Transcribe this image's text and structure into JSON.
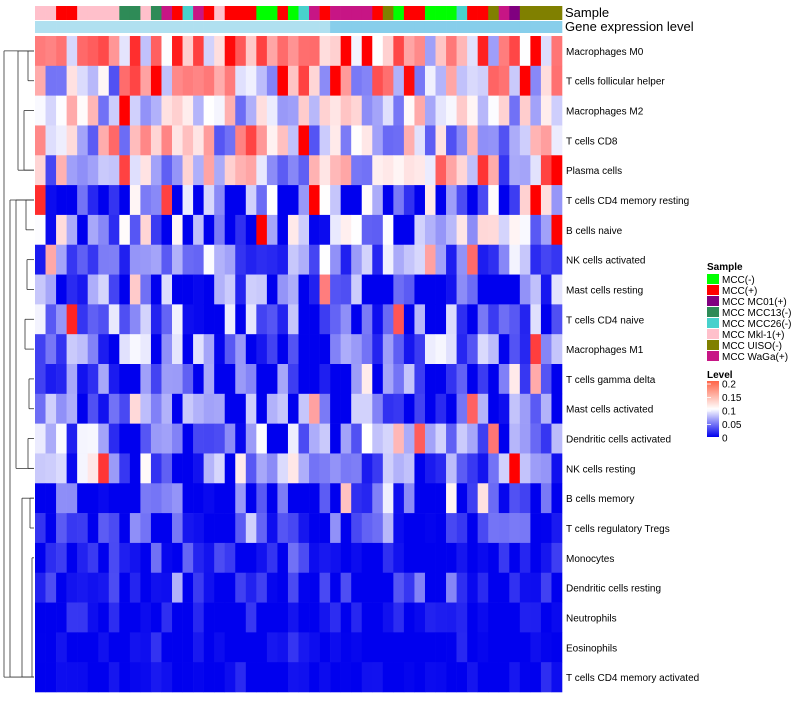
{
  "chart_data": {
    "type": "heatmap",
    "annotation_labels": [
      "Sample",
      "Gene expression level"
    ],
    "rows": [
      "Macrophages M0",
      "T cells follicular helper",
      "Macrophages M2",
      "T cells CD8",
      "Plasma cells",
      "T cells CD4 memory resting",
      "B cells naive",
      "NK cells activated",
      "Mast cells resting",
      "T cells CD4 naive",
      "Macrophages M1",
      "T cells gamma delta",
      "Mast cells activated",
      "Dendritic cells activated",
      "NK cells resting",
      "B cells memory",
      "T cells regulatory  Tregs",
      "Monocytes",
      "Dendritic cells resting",
      "Neutrophils",
      "Eosinophils",
      "T cells CD4 memory activated"
    ],
    "n_cols": 50,
    "col_samples": [
      "MCC Mkl-1(+)",
      "MCC Mkl-1(+)",
      "MCC(+)",
      "MCC(+)",
      "MCC Mkl-1(+)",
      "MCC Mkl-1(+)",
      "MCC Mkl-1(+)",
      "MCC Mkl-1(+)",
      "MCC MCC13(-)",
      "MCC MCC13(-)",
      "MCC Mkl-1(+)",
      "MCC MCC13(-)",
      "MCC WaGa(+)",
      "MCC(+)",
      "MCC MCC26(-)",
      "MCC WaGa(+)",
      "MCC(+)",
      "MCC Mkl-1(+)",
      "MCC(+)",
      "MCC(+)",
      "MCC(+)",
      "MCC(-)",
      "MCC(-)",
      "MCC(+)",
      "MCC(-)",
      "MCC MCC26(-)",
      "MCC WaGa(+)",
      "MCC(+)",
      "MCC WaGa(+)",
      "MCC WaGa(+)",
      "MCC WaGa(+)",
      "MCC WaGa(+)",
      "MCC(+)",
      "MCC UISO(-)",
      "MCC(-)",
      "MCC(+)",
      "MCC(+)",
      "MCC(-)",
      "MCC(-)",
      "MCC(-)",
      "MCC MCC26(-)",
      "MCC(+)",
      "MCC(+)",
      "MCC UISO(-)",
      "MCC WaGa(+)",
      "MCC MC01(+)",
      "MCC UISO(-)",
      "MCC UISO(-)",
      "MCC UISO(-)",
      "MCC UISO(-)"
    ],
    "row_profiles": [
      {
        "base": 0.13,
        "spread": 0.07
      },
      {
        "base": 0.12,
        "spread": 0.09
      },
      {
        "base": 0.09,
        "spread": 0.05
      },
      {
        "base": 0.09,
        "spread": 0.06
      },
      {
        "base": 0.08,
        "spread": 0.06
      },
      {
        "base": 0.03,
        "spread": 0.09
      },
      {
        "base": 0.03,
        "spread": 0.09
      },
      {
        "base": 0.06,
        "spread": 0.05
      },
      {
        "base": 0.02,
        "spread": 0.07
      },
      {
        "base": 0.02,
        "spread": 0.08
      },
      {
        "base": 0.04,
        "spread": 0.06
      },
      {
        "base": 0.02,
        "spread": 0.05
      },
      {
        "base": 0.03,
        "spread": 0.06
      },
      {
        "base": 0.04,
        "spread": 0.06
      },
      {
        "base": 0.04,
        "spread": 0.07
      },
      {
        "base": 0.01,
        "spread": 0.05
      },
      {
        "base": 0.01,
        "spread": 0.04
      },
      {
        "base": 0.005,
        "spread": 0.02
      },
      {
        "base": 0.005,
        "spread": 0.03
      },
      {
        "base": 0.002,
        "spread": 0.02
      },
      {
        "base": 0.0,
        "spread": 0.01
      },
      {
        "base": 0.0,
        "spread": 0.01
      }
    ],
    "color_scale": {
      "min": 0,
      "max": 0.2,
      "colors": [
        "#0000ee",
        "#ffffff",
        "#ff0000"
      ]
    },
    "legend": {
      "sample_title": "Sample",
      "sample_entries": [
        {
          "label": "MCC(-)",
          "color": "#00ff00"
        },
        {
          "label": "MCC(+)",
          "color": "#ff0000"
        },
        {
          "label": "MCC MC01(+)",
          "color": "#800080"
        },
        {
          "label": "MCC MCC13(-)",
          "color": "#2e8b57"
        },
        {
          "label": "MCC MCC26(-)",
          "color": "#48d1cc"
        },
        {
          "label": "MCC Mkl-1(+)",
          "color": "#ffc0cb"
        },
        {
          "label": "MCC UISO(-)",
          "color": "#808000"
        },
        {
          "label": "MCC WaGa(+)",
          "color": "#c71585"
        }
      ],
      "level_title": "Level",
      "level_ticks": [
        "0.2",
        "0.15",
        "0.1",
        "0.05",
        "0"
      ]
    },
    "gene_expression_color": "#87ceeb",
    "gene_expression_color_light": "#b0e0f0"
  }
}
